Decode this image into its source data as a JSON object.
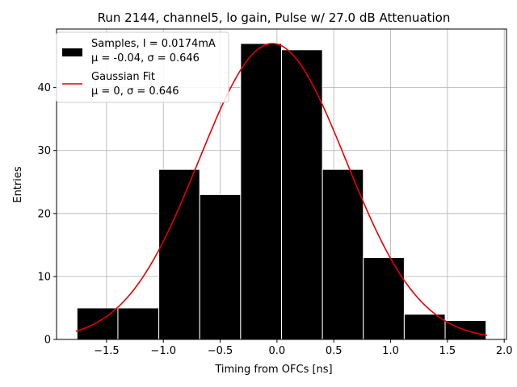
{
  "chart_data": {
    "type": "bar",
    "title": "Run 2144, channel5, lo gain, Pulse w/ 27.0 dB Attenuation",
    "xlabel": "Timing from OFCs [ns]",
    "ylabel": "Entries",
    "xlim": [
      -1.94,
      2.02
    ],
    "ylim": [
      0,
      49.3
    ],
    "grid": true,
    "legend_position": "top-left",
    "x_ticks": [
      -1.5,
      -1.0,
      -0.5,
      0.0,
      0.5,
      1.0,
      1.5,
      2.0
    ],
    "x_tick_labels": [
      "−1.5",
      "−1.0",
      "−0.5",
      "0.0",
      "0.5",
      "1.0",
      "1.5",
      "2.0"
    ],
    "y_ticks": [
      0,
      10,
      20,
      30,
      40
    ],
    "y_tick_labels": [
      "0",
      "10",
      "20",
      "30",
      "40"
    ],
    "histogram": {
      "name": "Samples, I = 0.0174mA",
      "stats": "μ = -0.04, σ = 0.646",
      "bin_edges": [
        -1.76,
        -1.4,
        -1.04,
        -0.68,
        -0.32,
        0.04,
        0.4,
        0.76,
        1.12,
        1.48,
        1.84
      ],
      "counts": [
        5,
        5,
        27,
        23,
        47,
        46,
        27,
        13,
        4,
        3
      ],
      "color": "#000000"
    },
    "fit": {
      "name": "Gaussian Fit",
      "stats": "μ = 0, σ = 0.646",
      "x_range": [
        -1.77,
        1.85
      ],
      "peak_x": -0.04,
      "peak_y": 47.0,
      "sigma": 0.646,
      "color": "#e60000"
    }
  }
}
